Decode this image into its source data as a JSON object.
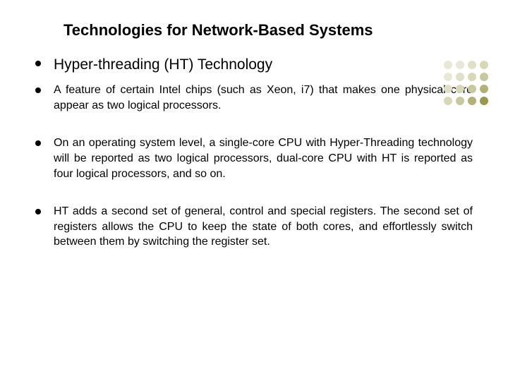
{
  "slide": {
    "title": "Technologies for Network-Based Systems",
    "main_bullet": "Hyper-threading (HT) Technology",
    "sub_bullets": [
      "A feature of certain Intel chips (such as Xeon, i7) that makes one physical core appear as two logical processors.",
      "On an operating system level, a single-core CPU with Hyper-Threading technology will be reported as two logical processors, dual-core CPU with HT is reported as four logical processors, and so on.",
      "HT adds a second set of general, control and special registers. The second set of registers allows the CPU to keep the state of both cores, and effortlessly switch between them by switching the register set."
    ]
  },
  "styling": {
    "title_fontsize": 22,
    "title_color": "#000000",
    "main_bullet_fontsize": 21,
    "sub_bullet_fontsize": 16,
    "text_color": "#000000",
    "background_color": "#ffffff",
    "bullet_dot_color": "#000000",
    "bullet_dot_size": 8,
    "deco_colors": [
      "#e8e8d8",
      "#e8e8d8",
      "#e0e0c8",
      "#d8d8b8",
      "#e8e8d8",
      "#e0e0c8",
      "#d8d8b8",
      "#c8c8a0",
      "#e0e0c8",
      "#d8d8b8",
      "#c8c8a0",
      "#b0b078",
      "#d8d8b8",
      "#c8c8a0",
      "#b0b078",
      "#989850"
    ]
  }
}
